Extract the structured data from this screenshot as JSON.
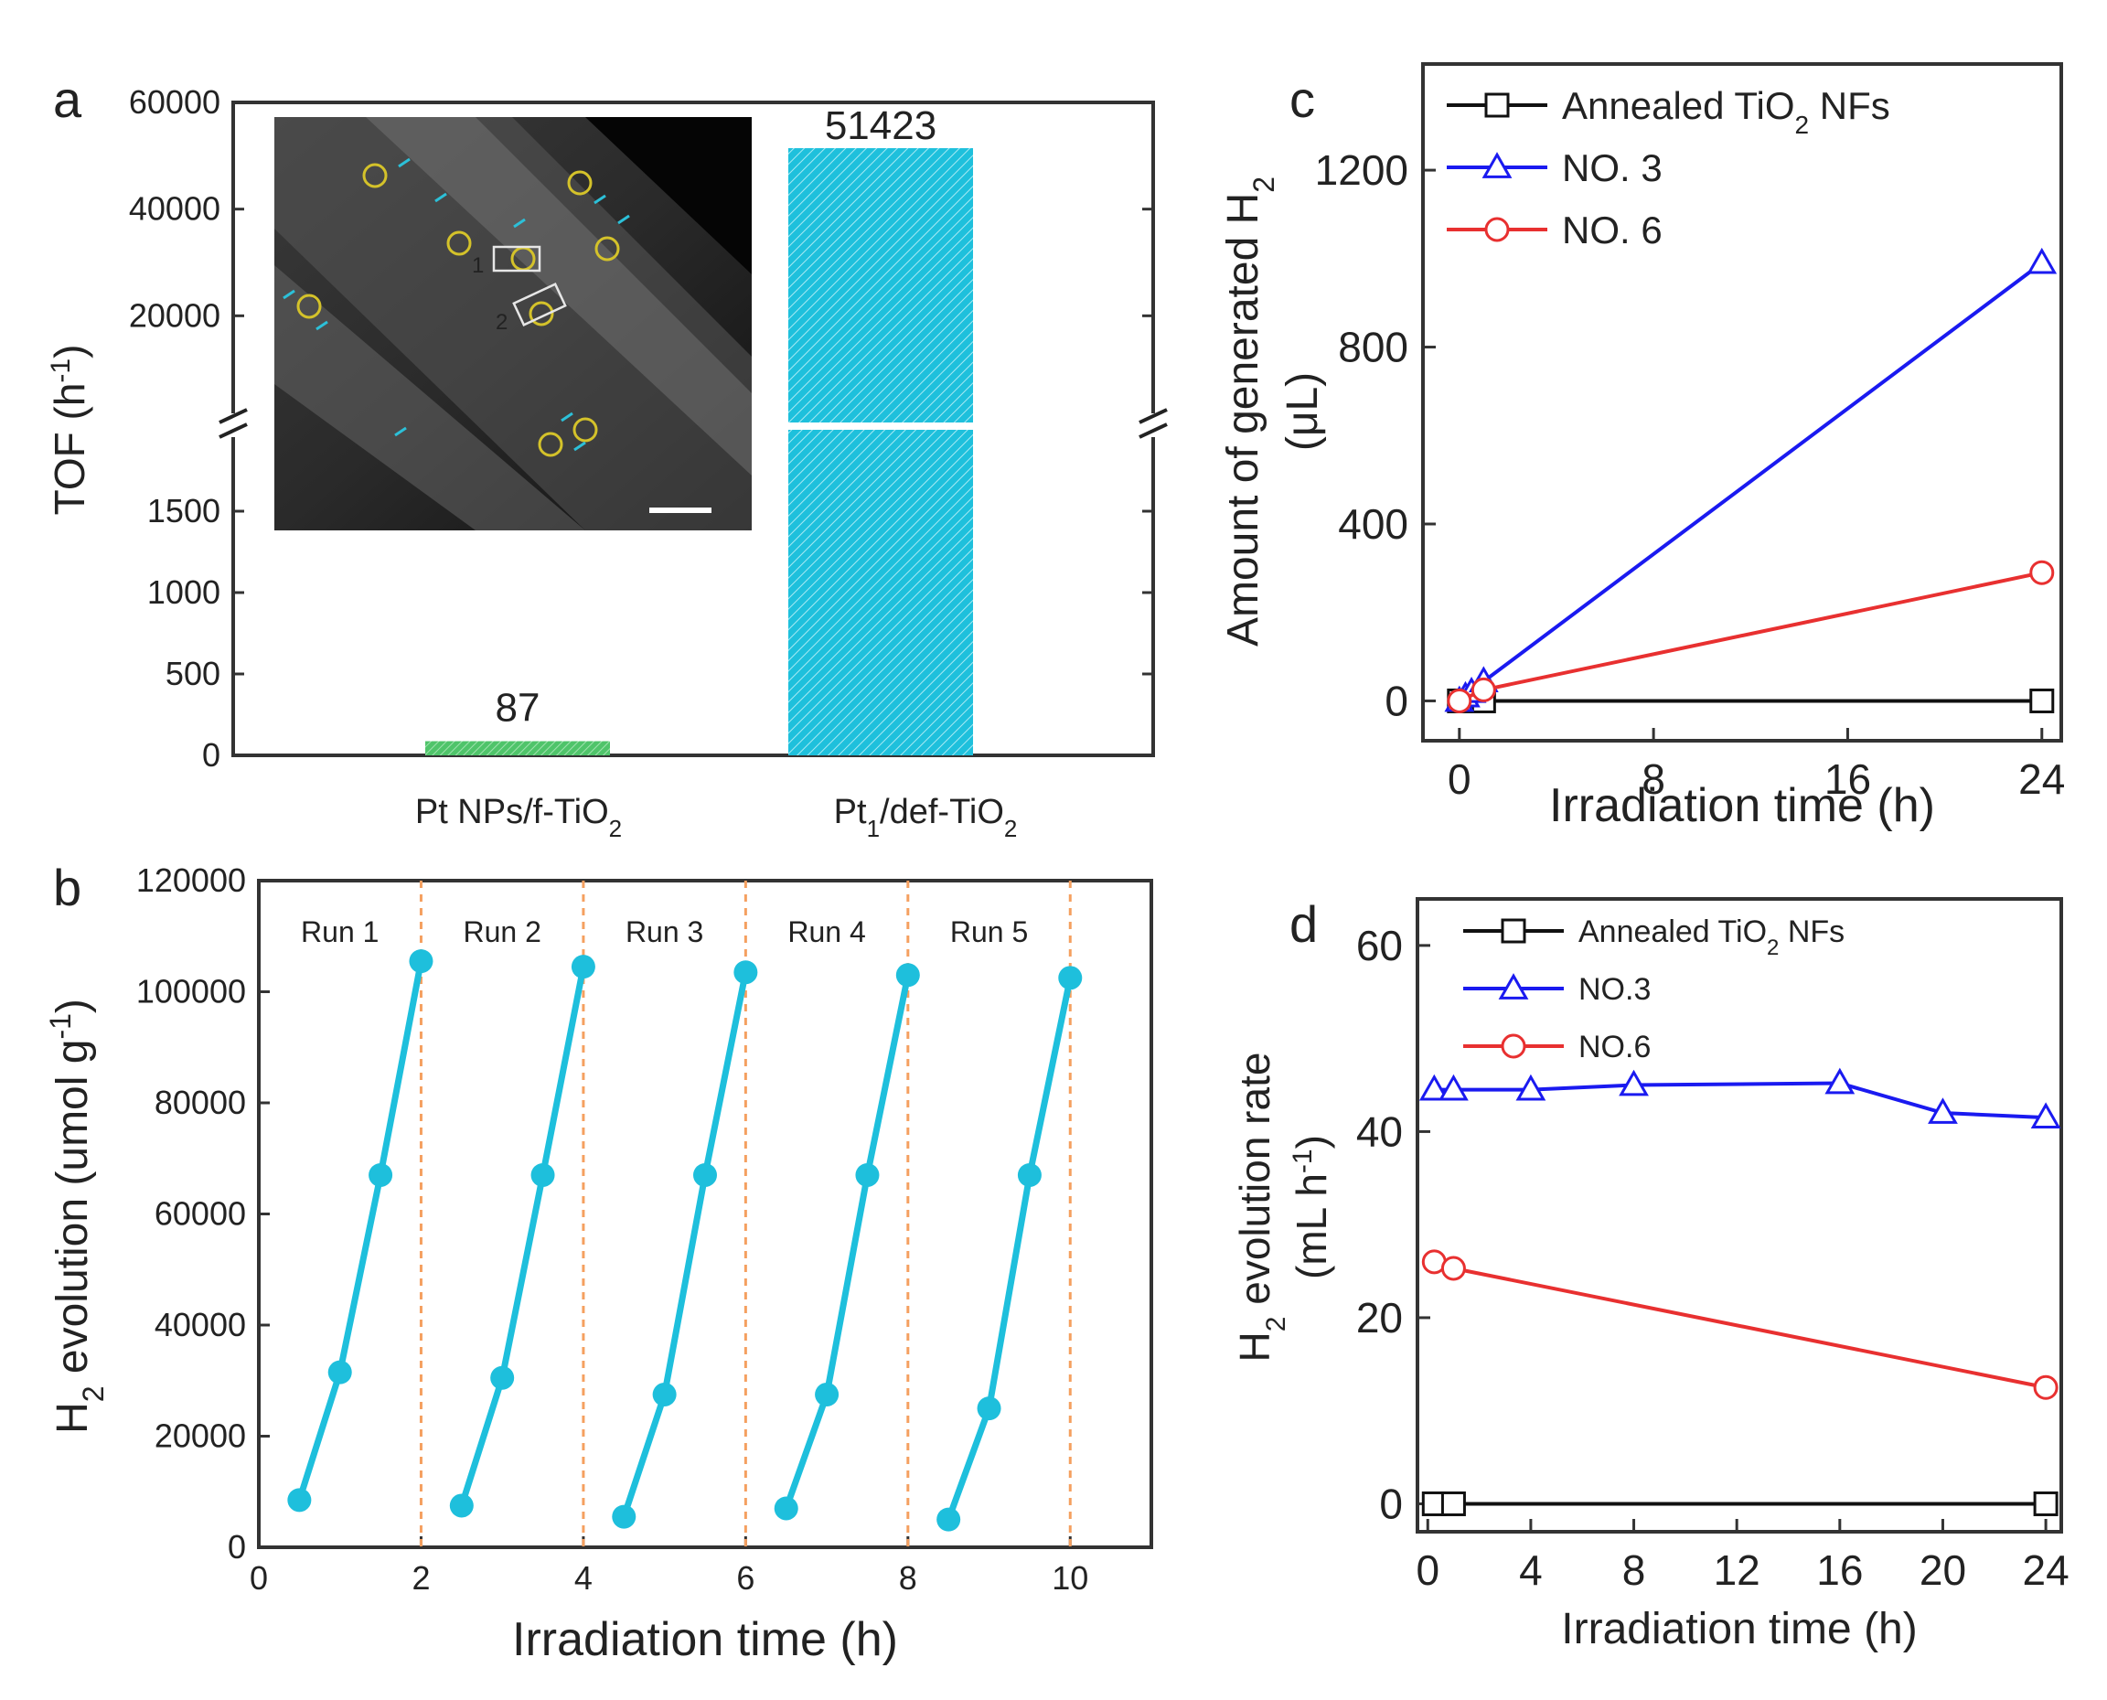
{
  "panels": {
    "a": {
      "letter": "a"
    },
    "b": {
      "letter": "b"
    },
    "c": {
      "letter": "c"
    },
    "d": {
      "letter": "d"
    }
  },
  "chart_data": [
    {
      "id": "a",
      "type": "bar",
      "title": "",
      "ylabel": "TOF (h⁻¹)",
      "ylabel_parts": {
        "main": "TOF (h",
        "sup": "-1",
        "end": ")"
      },
      "axis": "broken",
      "y_lower_range": [
        0,
        2000
      ],
      "y_upper_range": [
        0,
        60000
      ],
      "y_lower_ticks": [
        0,
        500,
        1000,
        1500
      ],
      "y_upper_ticks": [
        20000,
        40000,
        60000
      ],
      "categories": [
        "Pt NPs/f-TiO2",
        "Pt1/def-TiO2"
      ],
      "category_parts": [
        {
          "a": "Pt NPs/f-TiO",
          "sub": "2",
          "b": ""
        },
        {
          "a": "Pt",
          "sub": "1",
          "b": "/def-TiO",
          "sub2": "2"
        }
      ],
      "values": [
        87,
        51423
      ],
      "value_labels": [
        "87",
        "51423"
      ],
      "colors": [
        "#4fc46a",
        "#1ec0dc"
      ],
      "inset": {
        "description_image": true,
        "scale_labels": [
          "1",
          "2"
        ]
      }
    },
    {
      "id": "b",
      "type": "line",
      "xlabel": "Irradiation time (h)",
      "ylabel_parts": {
        "pre": "H",
        "sub": "2",
        "main": " evolution (umol g",
        "sup": "-1",
        "end": ")"
      },
      "xlim": [
        0,
        11
      ],
      "ylim": [
        0,
        120000
      ],
      "x_ticks": [
        0,
        2,
        4,
        6,
        8,
        10
      ],
      "y_ticks": [
        0,
        20000,
        40000,
        60000,
        80000,
        100000,
        120000
      ],
      "run_labels": [
        "Run 1",
        "Run 2",
        "Run 3",
        "Run 4",
        "Run 5"
      ],
      "run_boundaries": [
        2,
        4,
        6,
        8,
        10
      ],
      "color": "#1ebfdc",
      "series": [
        {
          "name": "Run 1",
          "x": [
            0.5,
            1.0,
            1.5,
            2.0
          ],
          "y": [
            8500,
            31500,
            67000,
            105500
          ]
        },
        {
          "name": "Run 2",
          "x": [
            2.5,
            3.0,
            3.5,
            4.0
          ],
          "y": [
            7500,
            30500,
            67000,
            104500
          ]
        },
        {
          "name": "Run 3",
          "x": [
            4.5,
            5.0,
            5.5,
            6.0
          ],
          "y": [
            5500,
            27500,
            67000,
            103500
          ]
        },
        {
          "name": "Run 4",
          "x": [
            6.5,
            7.0,
            7.5,
            8.0
          ],
          "y": [
            7000,
            27500,
            67000,
            103000
          ]
        },
        {
          "name": "Run 5",
          "x": [
            8.5,
            9.0,
            9.5,
            10.0
          ],
          "y": [
            5000,
            25000,
            67000,
            102500
          ]
        }
      ]
    },
    {
      "id": "c",
      "type": "line",
      "xlabel": "Irradiation time (h)",
      "ylabel_parts": {
        "line1": "Amount of generated H",
        "sub": "2",
        "line2": "(μL)"
      },
      "xlim": [
        -1.5,
        24.8
      ],
      "ylim": [
        -90,
        1440
      ],
      "x_ticks": [
        0,
        8,
        16,
        24
      ],
      "y_ticks": [
        0,
        400,
        800,
        1200
      ],
      "legend_parts": [
        {
          "a": "Annealed TiO",
          "sub": "2",
          "b": " NFs"
        },
        {
          "a": "NO. 3",
          "sub": "",
          "b": ""
        },
        {
          "a": "NO. 6",
          "sub": "",
          "b": ""
        }
      ],
      "series": [
        {
          "name": "Annealed TiO2 NFs",
          "marker": "square",
          "color": "#111111",
          "x": [
            0,
            1,
            24
          ],
          "y": [
            0,
            0,
            0
          ]
        },
        {
          "name": "NO. 3",
          "marker": "triangle",
          "color": "#1a1af0",
          "x": [
            0,
            0.25,
            0.5,
            1,
            24
          ],
          "y": [
            0,
            10,
            20,
            44,
            990
          ]
        },
        {
          "name": "NO. 6",
          "marker": "circle",
          "color": "#e83030",
          "x": [
            0,
            1,
            24
          ],
          "y": [
            0,
            25,
            290
          ]
        }
      ]
    },
    {
      "id": "d",
      "type": "line",
      "xlabel": "Irradiation time (h)",
      "ylabel_parts": {
        "pre": "H",
        "sub": "2",
        "line1": " evolution rate",
        "line2a": "(mL h",
        "sup": "-1",
        "line2b": ")"
      },
      "xlim": [
        -0.4,
        24.6
      ],
      "ylim": [
        -3,
        65
      ],
      "x_ticks": [
        0,
        4,
        8,
        12,
        16,
        20,
        24
      ],
      "y_ticks": [
        0,
        20,
        40,
        60
      ],
      "legend_parts": [
        {
          "a": "Annealed TiO",
          "sub": "2",
          "b": " NFs"
        },
        {
          "a": "NO.3",
          "sub": "",
          "b": ""
        },
        {
          "a": "NO.6",
          "sub": "",
          "b": ""
        }
      ],
      "series": [
        {
          "name": "Annealed TiO2 NFs",
          "marker": "square",
          "color": "#111111",
          "x": [
            0.25,
            1,
            24
          ],
          "y": [
            0,
            0,
            0
          ]
        },
        {
          "name": "NO.3",
          "marker": "triangle",
          "color": "#1a1af0",
          "x": [
            0.25,
            1,
            4,
            8,
            16,
            20,
            24
          ],
          "y": [
            44.5,
            44.5,
            44.5,
            45,
            45.2,
            42,
            41.5
          ]
        },
        {
          "name": "NO.6",
          "marker": "circle",
          "color": "#e83030",
          "x": [
            0.25,
            1,
            24
          ],
          "y": [
            26,
            25.3,
            12.5
          ]
        }
      ]
    }
  ]
}
